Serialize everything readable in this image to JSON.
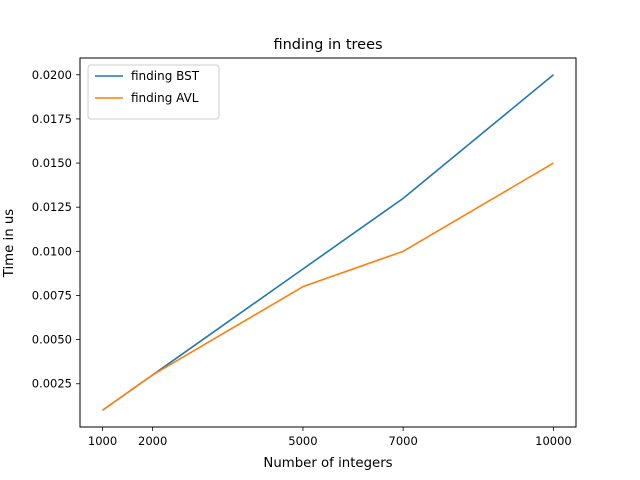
{
  "chart_data": {
    "type": "line",
    "title": "finding in trees",
    "xlabel": "Number of integers",
    "ylabel": "Time in us",
    "x": [
      1000,
      2000,
      5000,
      7000,
      10000
    ],
    "x_ticks": [
      1000,
      2000,
      5000,
      7000,
      10000
    ],
    "y_ticks": [
      "0.0025",
      "0.0050",
      "0.0075",
      "0.0100",
      "0.0125",
      "0.0150",
      "0.0175",
      "0.0200"
    ],
    "xlim": [
      550,
      10450
    ],
    "ylim": [
      5e-05,
      0.02095
    ],
    "grid": false,
    "legend_position": "upper-left",
    "series": [
      {
        "name": "finding BST",
        "color": "#1f77b4",
        "values": [
          0.001,
          0.003,
          0.009,
          0.013,
          0.02
        ]
      },
      {
        "name": "finding AVL",
        "color": "#ff7f0e",
        "values": [
          0.001,
          0.003,
          0.008,
          0.01,
          0.015
        ]
      }
    ]
  }
}
